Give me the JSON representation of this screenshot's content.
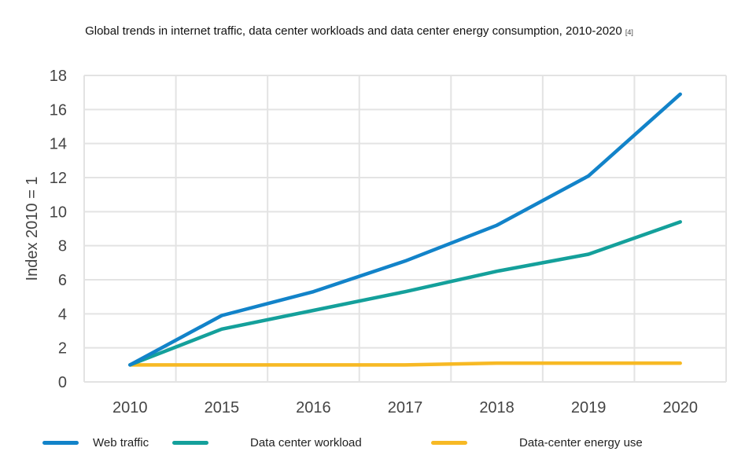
{
  "chart_data": {
    "type": "line",
    "title": "Global trends in internet traffic, data center workloads and data center energy consumption, 2010-2020",
    "title_ref": "[4]",
    "ylabel": "Index 2010 = 1",
    "xlabel": "",
    "categories": [
      "2010",
      "2015",
      "2016",
      "2017",
      "2018",
      "2019",
      "2020"
    ],
    "ylim": [
      0,
      18
    ],
    "yticks": [
      0,
      2,
      4,
      6,
      8,
      10,
      12,
      14,
      16,
      18
    ],
    "grid": true,
    "legend_position": "bottom",
    "series": [
      {
        "name": "Web traffic",
        "color": "#1283c9",
        "values": [
          1,
          3.9,
          5.3,
          7.1,
          9.2,
          12.1,
          16.9
        ]
      },
      {
        "name": "Data center workload",
        "color": "#14a09b",
        "values": [
          1,
          3.1,
          4.2,
          5.3,
          6.5,
          7.5,
          9.4
        ]
      },
      {
        "name": "Data-center energy use",
        "color": "#f7b924",
        "values": [
          1,
          1,
          1,
          1,
          1.1,
          1.1,
          1.1
        ]
      }
    ]
  }
}
